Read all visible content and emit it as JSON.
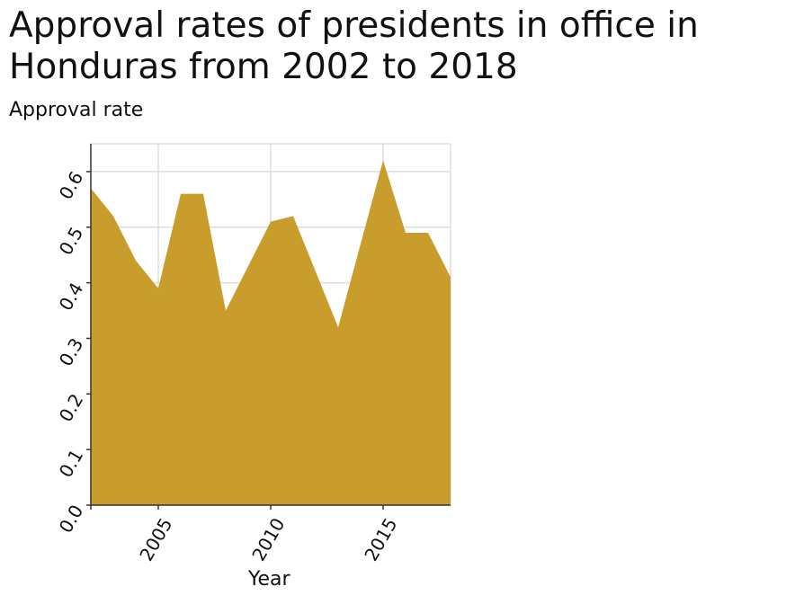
{
  "chart_data": {
    "type": "area",
    "title": "Approval rates of presidents in office in Honduras from 2002 to 2018",
    "xlabel": "Year",
    "ylabel": "Approval rate",
    "x": [
      2002,
      2003,
      2004,
      2005,
      2006,
      2007,
      2008,
      2009,
      2010,
      2011,
      2012,
      2013,
      2014,
      2015,
      2016,
      2017,
      2018
    ],
    "series": [
      {
        "values": [
          0.57,
          0.52,
          0.44,
          0.39,
          0.56,
          0.56,
          0.35,
          0.43,
          0.51,
          0.52,
          0.42,
          0.32,
          0.47,
          0.62,
          0.49,
          0.49,
          0.41
        ]
      }
    ],
    "xlim": [
      2002,
      2018
    ],
    "ylim": [
      0,
      0.65
    ],
    "xticks": [
      2005,
      2010,
      2015
    ],
    "xtick_labels": [
      "2005",
      "2010",
      "2015"
    ],
    "yticks": [
      0.0,
      0.1,
      0.2,
      0.3,
      0.4,
      0.5,
      0.6
    ],
    "ytick_labels": [
      "0.0",
      "0.1",
      "0.2",
      "0.3",
      "0.4",
      "0.5",
      "0.6"
    ],
    "grid": true,
    "fill_color": "#c99d2b",
    "grid_color": "#dddddd"
  }
}
